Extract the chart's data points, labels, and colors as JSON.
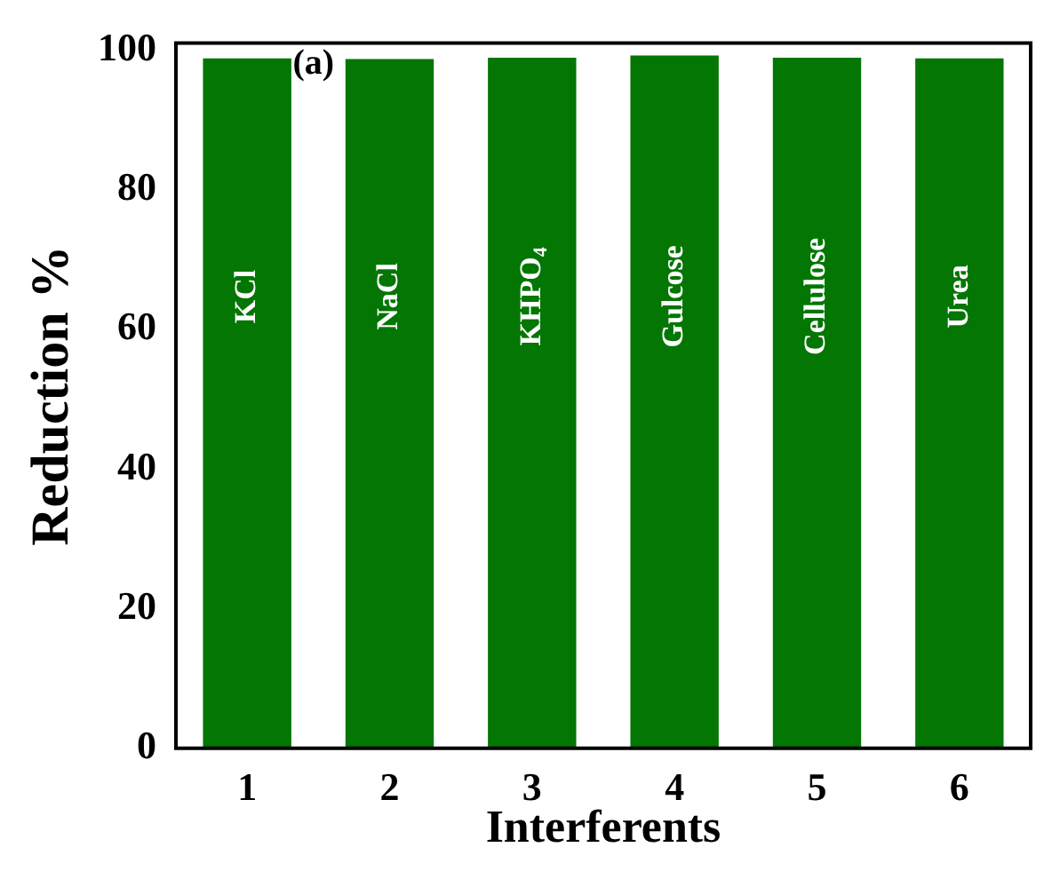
{
  "chart_data": {
    "type": "bar",
    "xlabel": "Interferents",
    "ylabel": "Reduction %",
    "categories": [
      "1",
      "2",
      "3",
      "4",
      "5",
      "6"
    ],
    "values": [
      98.8,
      98.7,
      98.9,
      99.2,
      98.9,
      98.8
    ],
    "color": "#037603",
    "ylim": [
      0,
      101
    ],
    "yticks": [
      0,
      20,
      40,
      60,
      80,
      100
    ],
    "grid": false,
    "legend": false,
    "annotations": [
      "(a)",
      "KCl",
      "NaCl",
      "KHPO$_{4}$",
      "Gulcose",
      "Cellulose",
      "Urea"
    ]
  }
}
